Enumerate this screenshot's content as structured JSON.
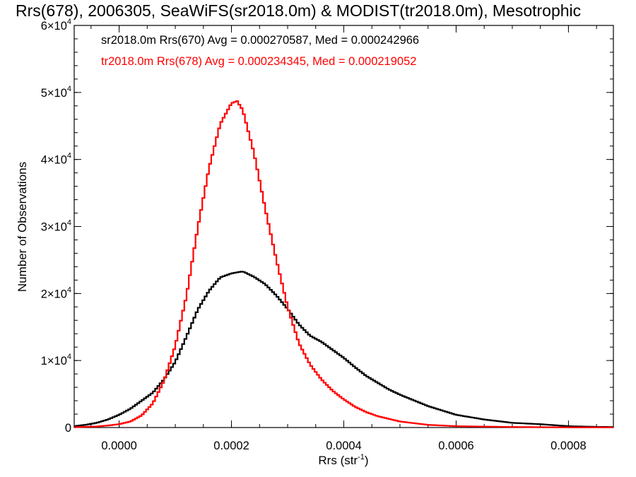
{
  "chart_data": {
    "type": "line",
    "title": "Rrs(678), 2006305, SeaWiFS(sr2018.0m) & MODIST(tr2018.0m), Mesotrophic",
    "xlabel": "Rrs (str",
    "xlabel_sup": "-1",
    "xlabel_end": ")",
    "ylabel": "Number of Observations",
    "xlim": [
      -8e-05,
      0.00088
    ],
    "ylim": [
      0,
      60000
    ],
    "grid": false,
    "legend_position": "top-left",
    "x_tick_labels": [
      {
        "value": 0.0,
        "label": "0.0000"
      },
      {
        "value": 0.0002,
        "label": "0.0002"
      },
      {
        "value": 0.0004,
        "label": "0.0004"
      },
      {
        "value": 0.0006,
        "label": "0.0006"
      },
      {
        "value": 0.0008,
        "label": "0.0008"
      }
    ],
    "y_tick_labels": [
      {
        "value": 0,
        "mant": "0",
        "exp": ""
      },
      {
        "value": 10000,
        "mant": "1×10",
        "exp": "4"
      },
      {
        "value": 20000,
        "mant": "2×10",
        "exp": "4"
      },
      {
        "value": 30000,
        "mant": "3×10",
        "exp": "4"
      },
      {
        "value": 40000,
        "mant": "4×10",
        "exp": "4"
      },
      {
        "value": 50000,
        "mant": "5×10",
        "exp": "4"
      },
      {
        "value": 60000,
        "mant": "6×10",
        "exp": "4"
      }
    ],
    "series": [
      {
        "legend": "sr2018.0m Rrs(670) Avg = 0.000270587, Med = 0.000242966",
        "color": "#000000",
        "x": [
          -8e-05,
          -6e-05,
          -4e-05,
          -2e-05,
          0.0,
          2e-05,
          4e-05,
          6e-05,
          8e-05,
          0.0001,
          0.00012,
          0.00014,
          0.00016,
          0.00018,
          0.0002,
          0.00022,
          0.00024,
          0.00026,
          0.00028,
          0.0003,
          0.00032,
          0.00034,
          0.00036,
          0.00038,
          0.0004,
          0.00042,
          0.00044,
          0.00046,
          0.00048,
          0.0005,
          0.00055,
          0.0006,
          0.00065,
          0.0007,
          0.00075,
          0.0008,
          0.00085,
          0.00088
        ],
        "y": [
          200,
          400,
          700,
          1200,
          1900,
          2800,
          4000,
          5200,
          7200,
          9800,
          13600,
          17600,
          20400,
          22400,
          23000,
          23300,
          22500,
          21400,
          19700,
          17700,
          15400,
          13700,
          12800,
          11600,
          10400,
          9000,
          7700,
          6700,
          5700,
          4900,
          3200,
          1900,
          1200,
          700,
          500,
          200,
          100,
          80
        ]
      },
      {
        "legend": "tr2018.0m Rrs(678) Avg = 0.000234345, Med = 0.000219052",
        "color": "#ff0000",
        "x": [
          -8e-05,
          -6e-05,
          -4e-05,
          -2e-05,
          0.0,
          2e-05,
          4e-05,
          6e-05,
          8e-05,
          0.0001,
          0.00012,
          0.00014,
          0.00016,
          0.00018,
          0.0002,
          0.00021,
          0.00022,
          0.00024,
          0.00026,
          0.00028,
          0.0003,
          0.00032,
          0.00034,
          0.00036,
          0.00038,
          0.0004,
          0.00042,
          0.00044,
          0.00046,
          0.0005,
          0.00055,
          0.0006,
          0.0007,
          0.0008,
          0.00088
        ],
        "y": [
          50,
          100,
          150,
          300,
          500,
          900,
          1800,
          3600,
          7000,
          12200,
          19700,
          29800,
          38700,
          45300,
          48400,
          48700,
          47400,
          41000,
          32700,
          25000,
          18000,
          12600,
          9400,
          7200,
          5500,
          4200,
          3100,
          2300,
          1700,
          900,
          400,
          200,
          80,
          30,
          20
        ]
      }
    ]
  }
}
